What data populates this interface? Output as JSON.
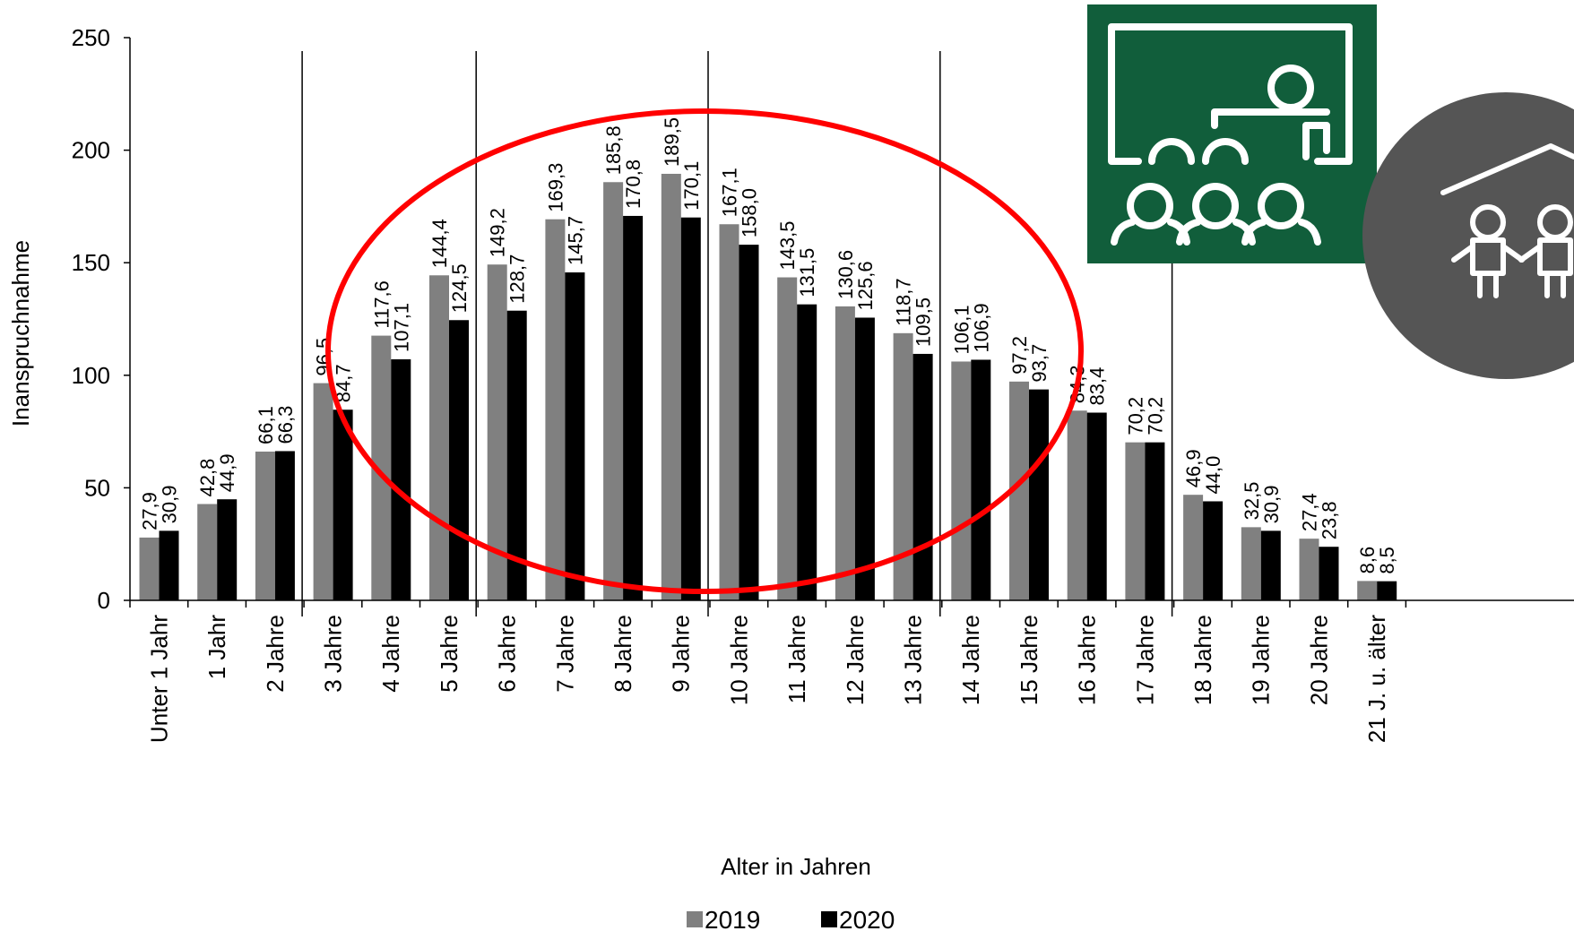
{
  "chart_data": {
    "type": "bar",
    "title": "",
    "xlabel": "Alter in Jahren",
    "ylabel": "Inanspruchnahme",
    "ylim": [
      0,
      250
    ],
    "yticks": [
      0,
      50,
      100,
      150,
      200,
      250
    ],
    "grid": false,
    "legend_position": "bottom",
    "categories": [
      "Unter 1 Jahr",
      "1 Jahr",
      "2 Jahre",
      "3 Jahre",
      "4 Jahre",
      "5 Jahre",
      "6 Jahre",
      "7 Jahre",
      "8 Jahre",
      "9 Jahre",
      "10 Jahre",
      "11 Jahre",
      "12 Jahre",
      "13 Jahre",
      "14 Jahre",
      "15 Jahre",
      "16 Jahre",
      "17 Jahre",
      "18 Jahre",
      "19 Jahre",
      "20 Jahre",
      "21 J. u. älter"
    ],
    "series": [
      {
        "name": "2019",
        "color": "#808080",
        "values": [
          27.9,
          42.8,
          66.1,
          96.5,
          117.6,
          144.4,
          149.2,
          169.3,
          185.8,
          189.5,
          167.1,
          143.5,
          130.6,
          118.7,
          106.1,
          97.2,
          84.3,
          70.2,
          46.9,
          32.5,
          27.4,
          8.6
        ],
        "labels": [
          "27,9",
          "42,8",
          "66,1",
          "96,5",
          "117,6",
          "144,4",
          "149,2",
          "169,3",
          "185,8",
          "189,5",
          "167,1",
          "143,5",
          "130,6",
          "118,7",
          "106,1",
          "97,2",
          "84,3",
          "70,2",
          "46,9",
          "32,5",
          "27,4",
          "8,6"
        ]
      },
      {
        "name": "2020",
        "color": "#000000",
        "values": [
          30.9,
          44.9,
          66.3,
          84.7,
          107.1,
          124.5,
          128.7,
          145.7,
          170.8,
          170.1,
          158.0,
          131.5,
          125.6,
          109.5,
          106.9,
          93.7,
          83.4,
          70.2,
          44.0,
          30.9,
          23.8,
          8.5
        ],
        "labels": [
          "30,9",
          "44,9",
          "66,3",
          "84,7",
          "107,1",
          "124,5",
          "128,7",
          "145,7",
          "170,8",
          "170,1",
          "158,0",
          "131,5",
          "125,6",
          "109,5",
          "106,9",
          "93,7",
          "83,4",
          "70,2",
          "44,0",
          "30,9",
          "23,8",
          "8,5"
        ]
      }
    ],
    "group_separators_after_index": [
      2,
      5,
      9,
      13,
      17
    ],
    "annotations": [
      {
        "type": "ellipse",
        "description": "highlight ages 3 to 13",
        "color": "#ff0000"
      }
    ]
  },
  "icons": [
    {
      "name": "classroom-teacher-icon",
      "bg": "#115e3b",
      "fg": "#ffffff"
    },
    {
      "name": "house-children-icon",
      "bg": "#555555",
      "fg": "#ffffff"
    }
  ]
}
